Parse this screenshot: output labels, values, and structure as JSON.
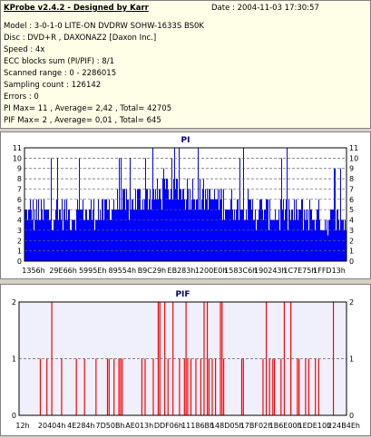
{
  "info": {
    "title": "KProbe v2.4.2 - Designed by Karr",
    "date": "Date : 2004-11-03 17:30:57",
    "lines": [
      "Model : 3-0-1-0 LITE-ON DVDRW SOHW-1633S BS0K",
      "Disc : DVD+R , DAXONAZ2 [Daxon Inc.]",
      "Speed : 4x",
      "ECC blocks sum (PI/PIF) : 8/1",
      "Scanned range : 0 - 2286015",
      "Sampling count : 126142",
      "Errors : 0",
      "PI Max= 11 , Average= 2,42 , Total= 42705",
      "PIF Max= 2 , Average= 0,01 , Total= 645"
    ]
  },
  "chart_data": [
    {
      "type": "bar",
      "title": "PI",
      "ylim": [
        0,
        11
      ],
      "yticks": [
        0,
        1,
        2,
        3,
        4,
        5,
        6,
        7,
        8,
        9,
        10,
        11
      ],
      "xtick_labels": [
        "1356h",
        "29E66h",
        "5995Eh",
        "89554h",
        "B9C29h",
        "EB283h",
        "1200E0h",
        "1583C6h",
        "190243h",
        "1C7E75h",
        "1FFD13h"
      ],
      "grid": true,
      "bar_color": "#0000ff",
      "background": "#ffffff",
      "max": 11,
      "average": 2.42
    },
    {
      "type": "bar",
      "title": "PIF",
      "ylim": [
        0,
        2
      ],
      "yticks": [
        0,
        1,
        2
      ],
      "xtick_labels": [
        "12h",
        "20404h",
        "4E284h",
        "7D50Bh",
        "AE013h",
        "DDF06h",
        "11186Bh",
        "148D05h",
        "17BF02h",
        "1B6E00h",
        "1EDE10h",
        "224B4Eh"
      ],
      "grid": true,
      "bar_color": "#ff0000",
      "background": "#f0f0fc",
      "spikes": [
        {
          "x": 0.065,
          "v": 1
        },
        {
          "x": 0.085,
          "v": 1
        },
        {
          "x": 0.1,
          "v": 2
        },
        {
          "x": 0.13,
          "v": 1
        },
        {
          "x": 0.175,
          "v": 1
        },
        {
          "x": 0.2,
          "v": 1
        },
        {
          "x": 0.235,
          "v": 1
        },
        {
          "x": 0.27,
          "v": 1
        },
        {
          "x": 0.275,
          "v": 1
        },
        {
          "x": 0.29,
          "v": 1
        },
        {
          "x": 0.305,
          "v": 1
        },
        {
          "x": 0.31,
          "v": 1
        },
        {
          "x": 0.315,
          "v": 1
        },
        {
          "x": 0.375,
          "v": 1
        },
        {
          "x": 0.385,
          "v": 1
        },
        {
          "x": 0.41,
          "v": 1
        },
        {
          "x": 0.425,
          "v": 2
        },
        {
          "x": 0.43,
          "v": 2
        },
        {
          "x": 0.445,
          "v": 2
        },
        {
          "x": 0.455,
          "v": 1
        },
        {
          "x": 0.47,
          "v": 2
        },
        {
          "x": 0.49,
          "v": 1
        },
        {
          "x": 0.505,
          "v": 1
        },
        {
          "x": 0.51,
          "v": 2
        },
        {
          "x": 0.515,
          "v": 1
        },
        {
          "x": 0.525,
          "v": 1
        },
        {
          "x": 0.54,
          "v": 1
        },
        {
          "x": 0.555,
          "v": 1
        },
        {
          "x": 0.565,
          "v": 2
        },
        {
          "x": 0.575,
          "v": 2
        },
        {
          "x": 0.58,
          "v": 1
        },
        {
          "x": 0.59,
          "v": 1
        },
        {
          "x": 0.6,
          "v": 1
        },
        {
          "x": 0.615,
          "v": 2
        },
        {
          "x": 0.62,
          "v": 2
        },
        {
          "x": 0.625,
          "v": 1
        },
        {
          "x": 0.68,
          "v": 1
        },
        {
          "x": 0.685,
          "v": 1
        },
        {
          "x": 0.745,
          "v": 1
        },
        {
          "x": 0.755,
          "v": 2
        },
        {
          "x": 0.765,
          "v": 1
        },
        {
          "x": 0.775,
          "v": 1
        },
        {
          "x": 0.78,
          "v": 1
        },
        {
          "x": 0.8,
          "v": 1
        },
        {
          "x": 0.81,
          "v": 2
        },
        {
          "x": 0.83,
          "v": 2
        },
        {
          "x": 0.85,
          "v": 1
        },
        {
          "x": 0.855,
          "v": 1
        },
        {
          "x": 0.875,
          "v": 1
        },
        {
          "x": 0.885,
          "v": 1
        },
        {
          "x": 0.905,
          "v": 1
        },
        {
          "x": 0.915,
          "v": 1
        },
        {
          "x": 0.96,
          "v": 2
        }
      ]
    }
  ]
}
